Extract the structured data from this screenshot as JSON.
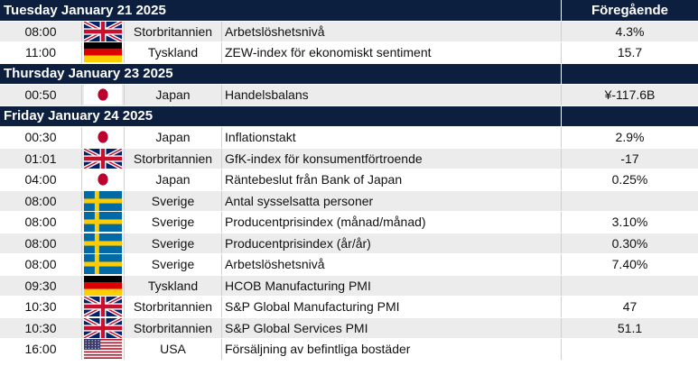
{
  "columns": {
    "previous": "Föregående"
  },
  "groups": [
    {
      "date": "Tuesday January 21 2025",
      "rows": [
        {
          "time": "08:00",
          "flag": "uk-flag-icon",
          "country": "Storbritannien",
          "event": "Arbetslöshetsnivå",
          "previous": "4.3%"
        },
        {
          "time": "11:00",
          "flag": "germany-flag-icon",
          "country": "Tyskland",
          "event": "ZEW-index för ekonomiskt sentiment",
          "previous": "15.7"
        }
      ]
    },
    {
      "date": "Thursday January 23 2025",
      "rows": [
        {
          "time": "00:50",
          "flag": "japan-flag-icon",
          "country": "Japan",
          "event": "Handelsbalans",
          "previous": "¥-117.6B"
        }
      ]
    },
    {
      "date": "Friday January 24 2025",
      "rows": [
        {
          "time": "00:30",
          "flag": "japan-flag-icon",
          "country": "Japan",
          "event": "Inflationstakt",
          "previous": "2.9%"
        },
        {
          "time": "01:01",
          "flag": "uk-flag-icon",
          "country": "Storbritannien",
          "event": "GfK-index för konsumentförtroende",
          "previous": "-17"
        },
        {
          "time": "04:00",
          "flag": "japan-flag-icon",
          "country": "Japan",
          "event": "Räntebeslut från Bank of Japan",
          "previous": "0.25%"
        },
        {
          "time": "08:00",
          "flag": "sweden-flag-icon",
          "country": "Sverige",
          "event": "Antal sysselsatta personer",
          "previous": ""
        },
        {
          "time": "08:00",
          "flag": "sweden-flag-icon",
          "country": "Sverige",
          "event": "Producentprisindex (månad/månad)",
          "previous": "3.10%"
        },
        {
          "time": "08:00",
          "flag": "sweden-flag-icon",
          "country": "Sverige",
          "event": "Producentprisindex (år/år)",
          "previous": "0.30%"
        },
        {
          "time": "08:00",
          "flag": "sweden-flag-icon",
          "country": "Sverige",
          "event": "Arbetslöshetsnivå",
          "previous": "7.40%"
        },
        {
          "time": "09:30",
          "flag": "germany-flag-icon",
          "country": "Tyskland",
          "event": "HCOB Manufacturing PMI",
          "previous": ""
        },
        {
          "time": "10:30",
          "flag": "uk-flag-icon",
          "country": "Storbritannien",
          "event": "S&P Global Manufacturing PMI",
          "previous": "47"
        },
        {
          "time": "10:30",
          "flag": "uk-flag-icon",
          "country": "Storbritannien",
          "event": "S&P Global Services PMI",
          "previous": "51.1"
        },
        {
          "time": "16:00",
          "flag": "usa-flag-icon",
          "country": "USA",
          "event": "Försäljning av befintliga bostäder",
          "previous": ""
        }
      ]
    }
  ]
}
